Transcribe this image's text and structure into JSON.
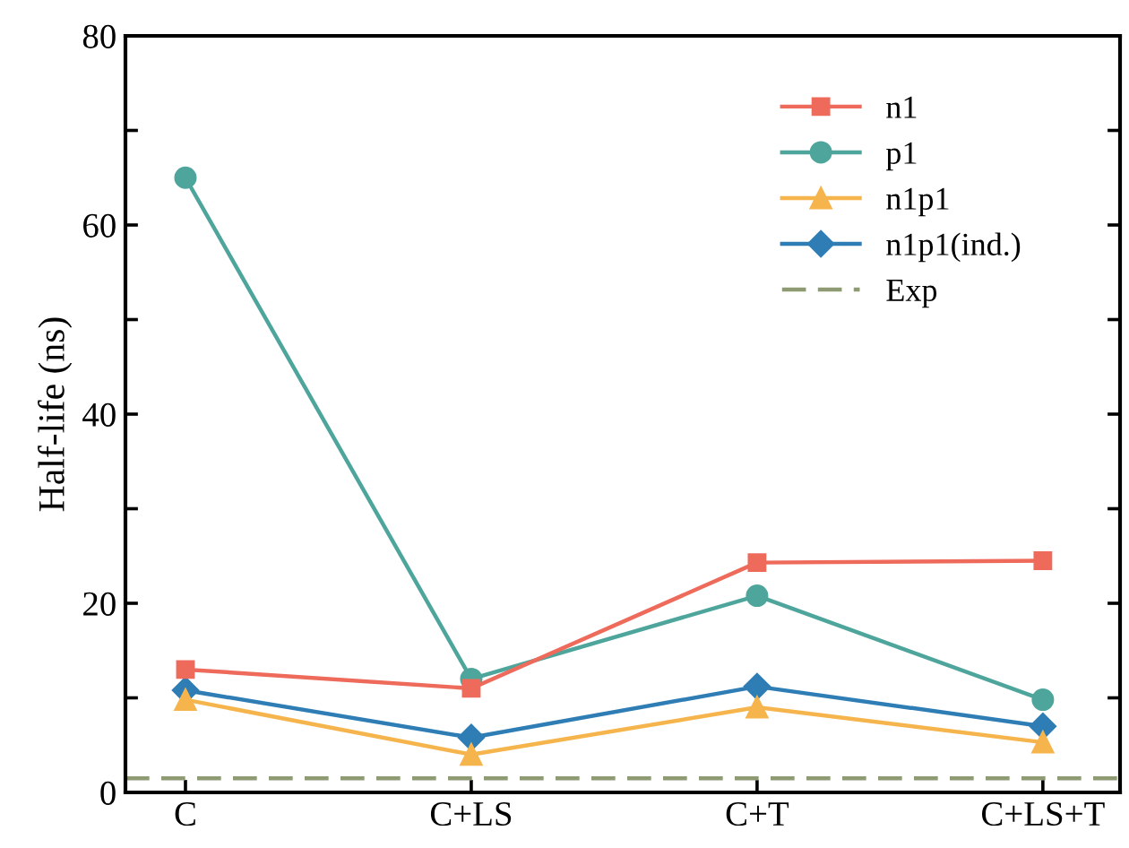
{
  "chart_data": {
    "type": "line",
    "ylabel": "Half-life (ns)",
    "categories": [
      "C",
      "C+LS",
      "C+T",
      "C+LS+T"
    ],
    "series": [
      {
        "name": "n1",
        "color": "#ee6a5b",
        "marker": "square",
        "values": [
          13,
          11,
          24.3,
          24.5
        ]
      },
      {
        "name": "p1",
        "color": "#4ea59c",
        "marker": "circle",
        "values": [
          65,
          12,
          20.8,
          9.8
        ]
      },
      {
        "name": "n1p1",
        "color": "#f6b44d",
        "marker": "triangle",
        "values": [
          9.8,
          4,
          9,
          5.3
        ]
      },
      {
        "name": "n1p1(ind.)",
        "color": "#2f7db5",
        "marker": "diamond",
        "values": [
          10.8,
          5.8,
          11.2,
          7
        ]
      }
    ],
    "ref_lines": [
      {
        "axis": "y",
        "value": 1.5,
        "label": "Exp",
        "color": "#8d9a72",
        "line_style": "dashed"
      }
    ],
    "ylim": [
      0,
      80
    ],
    "yticks": [
      0,
      {
        "value": 10,
        "label": null
      },
      20,
      {
        "value": 30,
        "label": null
      },
      40,
      {
        "value": 50,
        "label": null
      },
      60,
      {
        "value": 70,
        "label": null
      },
      80
    ],
    "legend": "top right",
    "grid": false,
    "line_style": "solid"
  }
}
